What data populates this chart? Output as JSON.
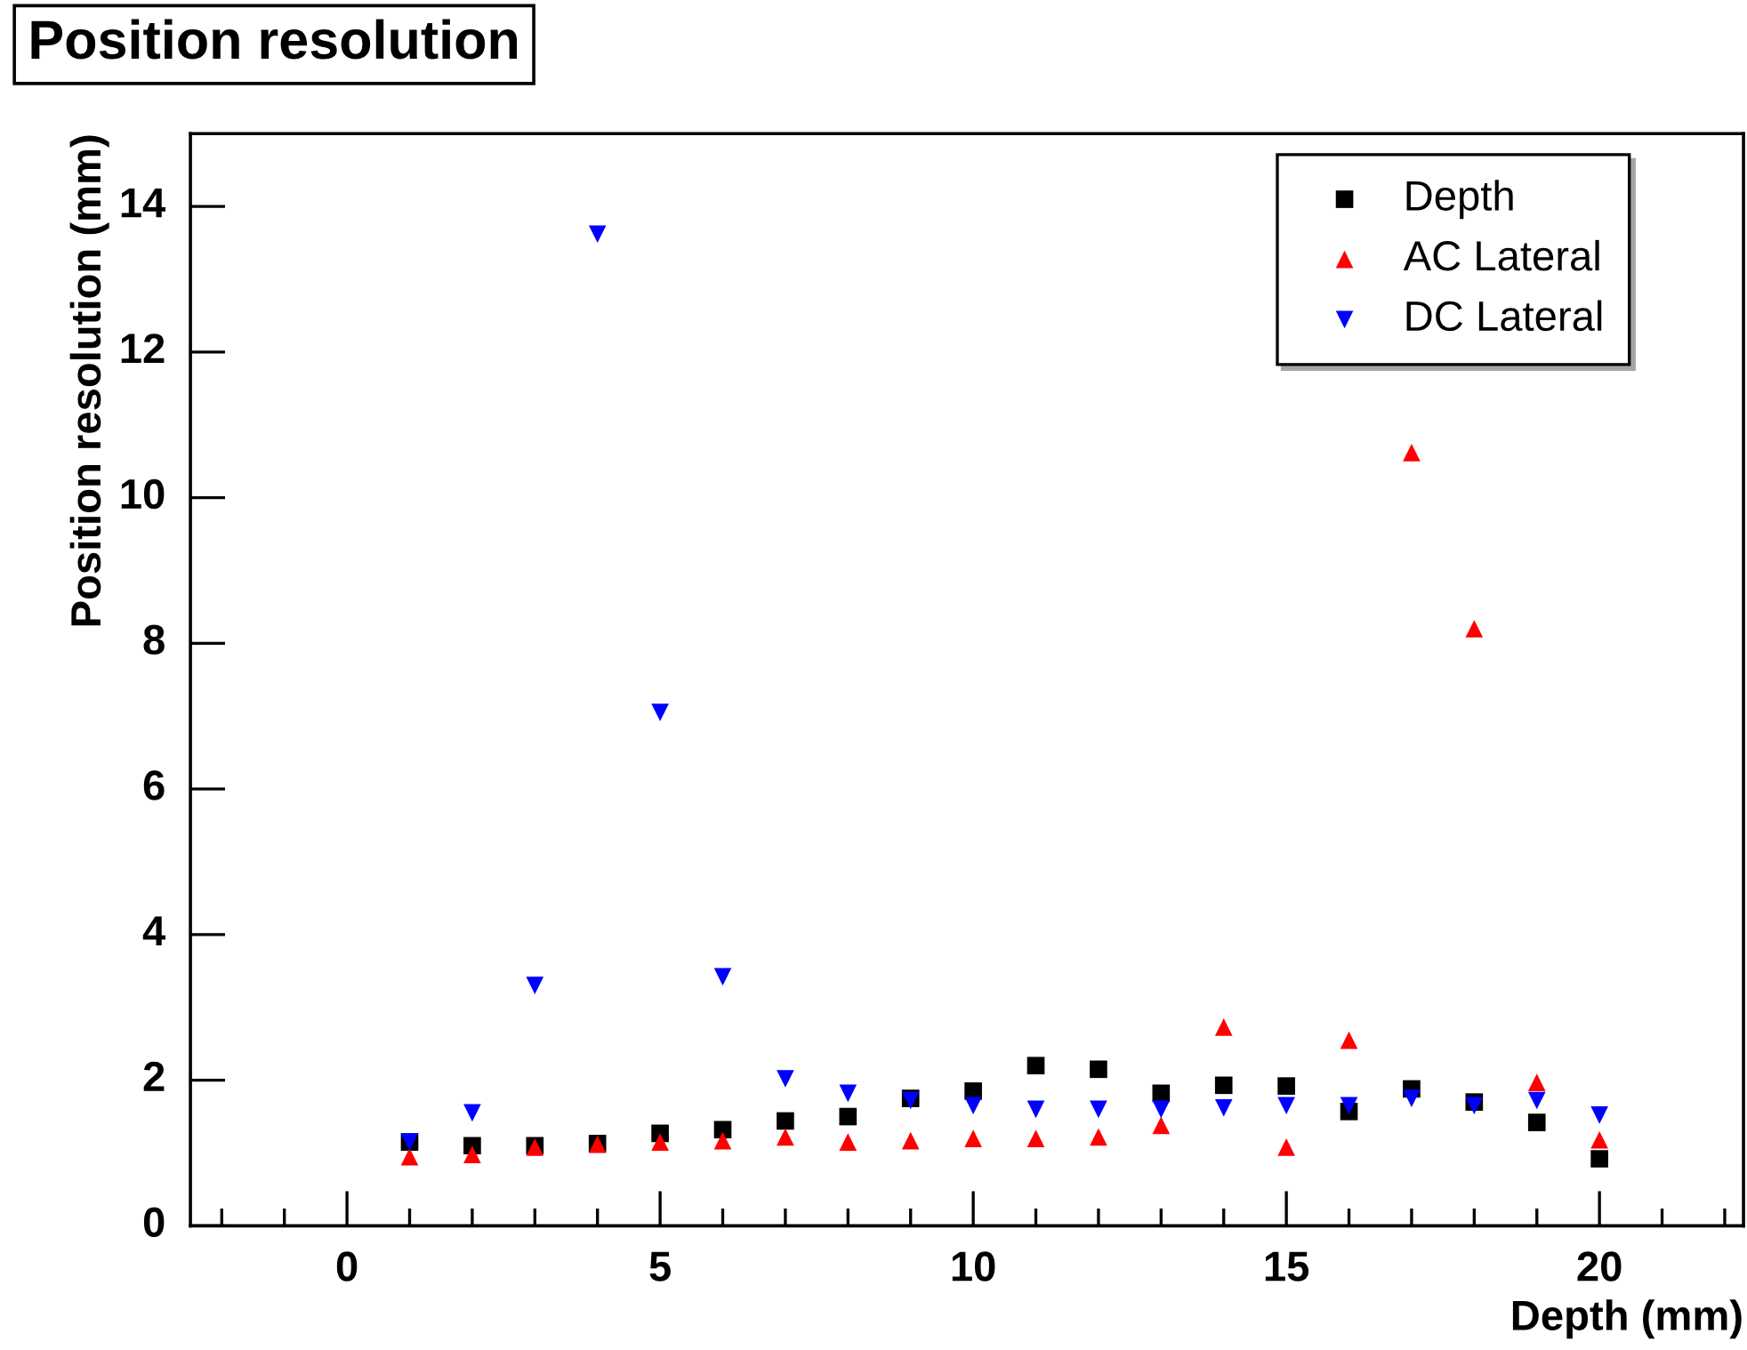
{
  "chart_data": {
    "type": "scatter",
    "title": "Position resolution",
    "xlabel": "Depth (mm)",
    "ylabel": "Position resolution (mm)",
    "x": [
      1,
      2,
      3,
      4,
      5,
      6,
      7,
      8,
      9,
      10,
      11,
      12,
      13,
      14,
      15,
      16,
      17,
      18,
      19,
      20
    ],
    "series": [
      {
        "name": "Depth",
        "color": "#000000",
        "marker": "square",
        "values": [
          1.15,
          1.1,
          1.1,
          1.13,
          1.27,
          1.32,
          1.44,
          1.5,
          1.75,
          1.85,
          2.2,
          2.15,
          1.82,
          1.93,
          1.92,
          1.57,
          1.88,
          1.7,
          1.42,
          0.92
        ]
      },
      {
        "name": "AC Lateral",
        "color": "#ff0000",
        "marker": "triangle",
        "values": [
          0.95,
          0.98,
          1.08,
          1.12,
          1.15,
          1.17,
          1.22,
          1.15,
          1.17,
          1.2,
          1.2,
          1.22,
          1.38,
          2.73,
          1.08,
          2.55,
          10.62,
          8.2,
          1.97,
          1.18
        ]
      },
      {
        "name": "DC Lateral",
        "color": "#0000ff",
        "values": [
          1.15,
          1.55,
          3.3,
          13.62,
          7.05,
          3.42,
          2.02,
          1.82,
          1.72,
          1.65,
          1.6,
          1.6,
          1.6,
          1.62,
          1.65,
          1.65,
          1.75,
          1.65,
          1.72,
          1.52
        ]
      }
    ],
    "xlim": [
      -2.5,
      22.3
    ],
    "ylim": [
      0,
      15
    ],
    "xticks": [
      {
        "value": -2,
        "label": null
      },
      {
        "value": -1,
        "label": null
      },
      0,
      {
        "value": 1,
        "label": null
      },
      {
        "value": 2,
        "label": null
      },
      {
        "value": 3,
        "label": null
      },
      {
        "value": 4,
        "label": null
      },
      5,
      {
        "value": 6,
        "label": null
      },
      {
        "value": 7,
        "label": null
      },
      {
        "value": 8,
        "label": null
      },
      {
        "value": 9,
        "label": null
      },
      10,
      {
        "value": 11,
        "label": null
      },
      {
        "value": 12,
        "label": null
      },
      {
        "value": 13,
        "label": null
      },
      {
        "value": 14,
        "label": null
      },
      15,
      {
        "value": 16,
        "label": null
      },
      {
        "value": 17,
        "label": null
      },
      {
        "value": 18,
        "label": null
      },
      {
        "value": 19,
        "label": null
      },
      20,
      {
        "value": 21,
        "label": null
      },
      {
        "value": 22,
        "label": null
      }
    ],
    "yticks": [
      0,
      2,
      4,
      6,
      8,
      10,
      12,
      14
    ],
    "grid": false,
    "legend": "top right"
  }
}
